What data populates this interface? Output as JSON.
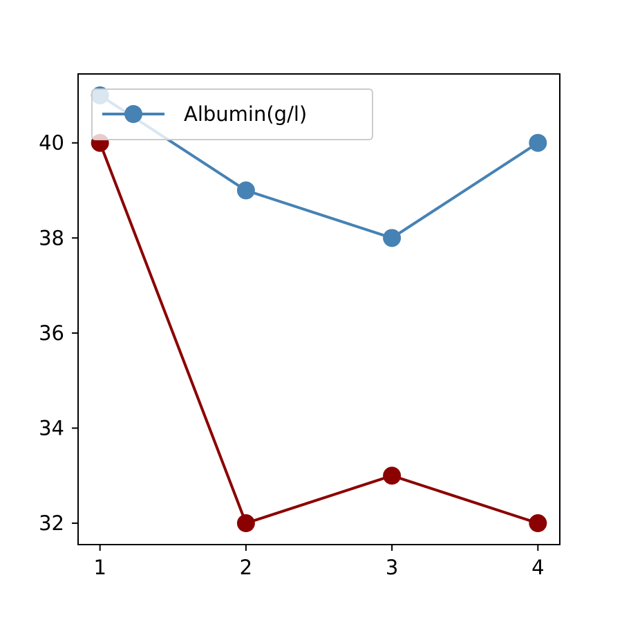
{
  "chart_data": {
    "type": "line",
    "title": "",
    "xlabel": "",
    "ylabel": "",
    "x": [
      1,
      2,
      3,
      4
    ],
    "xlim": [
      0.85,
      4.15
    ],
    "ylim": [
      31.55,
      41.45
    ],
    "xticks": [
      1,
      2,
      3,
      4
    ],
    "yticks": [
      32,
      34,
      36,
      38,
      40
    ],
    "grid": false,
    "legend_position": "top-left",
    "series": [
      {
        "name": "Albumin(g/l)",
        "values": [
          41,
          39,
          38,
          40
        ],
        "color": "#4682b4",
        "marker": "circle",
        "in_legend": true
      },
      {
        "name": "",
        "values": [
          40,
          32,
          33,
          32
        ],
        "color": "#8b0000",
        "marker": "circle",
        "in_legend": false
      }
    ]
  }
}
